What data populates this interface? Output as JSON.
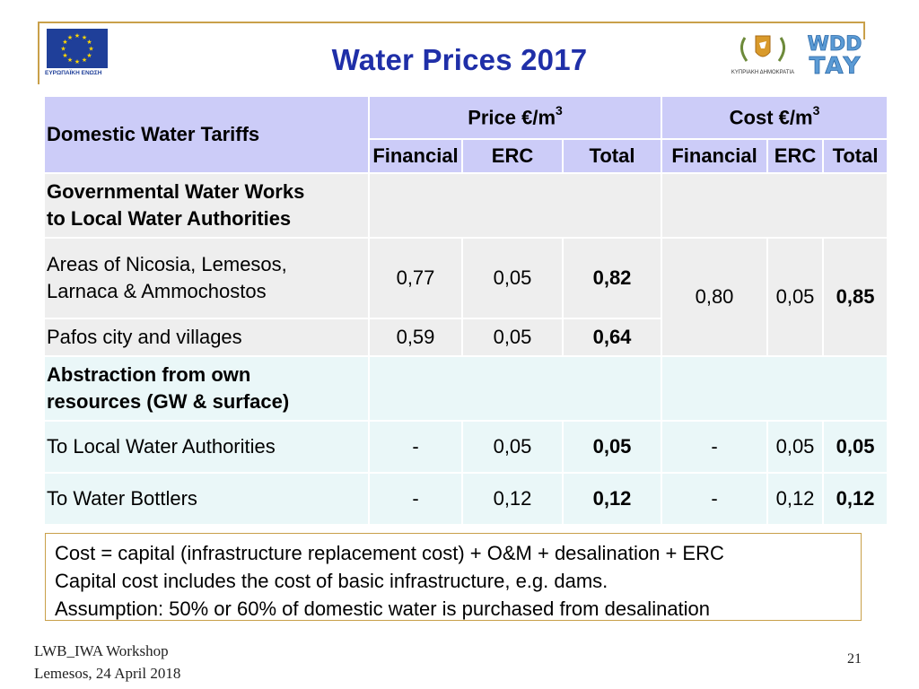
{
  "title": "Water Prices 2017",
  "logos": {
    "eu_caption": "ΕΥΡΩΠΑΪΚΗ ΕΝΩΣΗ",
    "cyprus_caption": "ΚΥΠΡΙΑΚΗ ΔΗΜΟΚΡΑΤΙΑ",
    "wdd_top": "WDD",
    "wdd_bottom": "ΤΑΥ"
  },
  "table": {
    "corner_header": "Domestic Water Tariffs",
    "price_group": "Price €/m",
    "cost_group": "Cost €/m",
    "exponent": "3",
    "subheaders": [
      "Financial",
      "ERC",
      "Total",
      "Financial",
      "ERC",
      "Total"
    ],
    "section1": {
      "title_line1": "Governmental Water Works",
      "title_line2": "to Local Water Authorities",
      "row1": {
        "label_line1": "Areas of Nicosia, Lemesos,",
        "label_line2": "Larnaca & Ammochostos",
        "price_financial": "0,77",
        "price_erc": "0,05",
        "price_total": "0,82"
      },
      "row2": {
        "label": "Pafos city and villages",
        "price_financial": "0,59",
        "price_erc": "0,05",
        "price_total": "0,64"
      },
      "cost_financial": "0,80",
      "cost_erc": "0,05",
      "cost_total": "0,85"
    },
    "section2": {
      "title_line1": "Abstraction from own",
      "title_line2": "resources (GW & surface)",
      "row1": {
        "label": "To Local Water Authorities",
        "price_financial": "-",
        "price_erc": "0,05",
        "price_total": "0,05",
        "cost_financial": "-",
        "cost_erc": "0,05",
        "cost_total": "0,05"
      },
      "row2": {
        "label": "To Water Bottlers",
        "price_financial": "-",
        "price_erc": "0,12",
        "price_total": "0,12",
        "cost_financial": "-",
        "cost_erc": "0,12",
        "cost_total": "0,12"
      }
    }
  },
  "notes": [
    "Cost = capital (infrastructure replacement cost) + O&M + desalination + ERC",
    "Capital cost includes the cost of basic infrastructure, e.g. dams.",
    "Assumption:  50% or 60% of domestic water is purchased from desalination"
  ],
  "footer": {
    "line1": "LWB_IWA Workshop",
    "line2": "Lemesos, 24 April 2018",
    "page_number": "21"
  }
}
